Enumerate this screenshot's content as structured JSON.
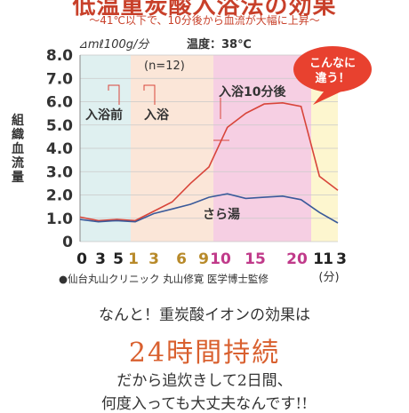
{
  "header": {
    "title": "低温重炭酸入浴法の効果",
    "subtitle": "〜41℃以下で、10分後から血流が大幅に上昇〜"
  },
  "chart_data": {
    "type": "line",
    "unit_label": "⊿mℓ100g/分",
    "temperature_label": "温度：38℃",
    "n_label": "(n=12)",
    "ylabel": "組織血流量",
    "xlabel_unit": "(分)",
    "ylim": [
      0,
      8.0
    ],
    "y_ticks": [
      "8.0",
      "7.0",
      "6.0",
      "5.0",
      "4.0",
      "3.0",
      "2.0",
      "1.0",
      "0"
    ],
    "x_ticks": [
      {
        "label": "0",
        "color": "#222"
      },
      {
        "label": "3",
        "color": "#222"
      },
      {
        "label": "5",
        "color": "#222"
      },
      {
        "label": "1",
        "color": "#b88a2a"
      },
      {
        "label": "3",
        "color": "#b88a2a"
      },
      {
        "label": "6",
        "color": "#b88a2a"
      },
      {
        "label": "9",
        "color": "#b88a2a"
      },
      {
        "label": "10",
        "color": "#c03a8a"
      },
      {
        "label": "15",
        "color": "#c03a8a"
      },
      {
        "label": "20",
        "color": "#c03a8a"
      },
      {
        "label": "1",
        "color": "#222"
      },
      {
        "label": "1",
        "color": "#222"
      },
      {
        "label": "3",
        "color": "#222"
      }
    ],
    "phases": [
      {
        "label": "入浴前",
        "color": "#dff0f0"
      },
      {
        "label": "入浴",
        "color": "#fbe6d8"
      },
      {
        "label": "入浴10分後",
        "color": "#f6cfe3"
      },
      {
        "label": "",
        "color": "#fdf6cf"
      }
    ],
    "series": [
      {
        "name": "",
        "color": "#d8453a",
        "points": [
          [
            0,
            1.05
          ],
          [
            1,
            0.9
          ],
          [
            2,
            0.95
          ],
          [
            3,
            0.9
          ],
          [
            4,
            1.3
          ],
          [
            5,
            1.7
          ],
          [
            6,
            2.5
          ],
          [
            7,
            3.2
          ],
          [
            8,
            4.9
          ],
          [
            9,
            5.5
          ],
          [
            10,
            5.9
          ],
          [
            11,
            5.95
          ],
          [
            12,
            5.8
          ],
          [
            13,
            2.8
          ],
          [
            14,
            2.2
          ]
        ]
      },
      {
        "name": "さら湯",
        "color": "#3a5a9a",
        "points": [
          [
            0,
            0.95
          ],
          [
            1,
            0.85
          ],
          [
            2,
            0.9
          ],
          [
            3,
            0.85
          ],
          [
            4,
            1.2
          ],
          [
            5,
            1.4
          ],
          [
            6,
            1.6
          ],
          [
            7,
            1.9
          ],
          [
            8,
            2.05
          ],
          [
            9,
            1.85
          ],
          [
            10,
            1.9
          ],
          [
            11,
            1.95
          ],
          [
            12,
            1.8
          ],
          [
            13,
            1.25
          ],
          [
            14,
            0.8
          ]
        ]
      }
    ],
    "annotation": "入浴10分後",
    "callout": "こんなに\n違う！",
    "source": "●仙台丸山クリニック 丸山修寛 医学博士監修"
  },
  "captions": {
    "line1": "なんと！重炭酸イオンの効果は",
    "line2": "24時間持続",
    "line3": "だから追炊きして2日間、",
    "line4": "何度入っても大丈夫なんです!!"
  }
}
